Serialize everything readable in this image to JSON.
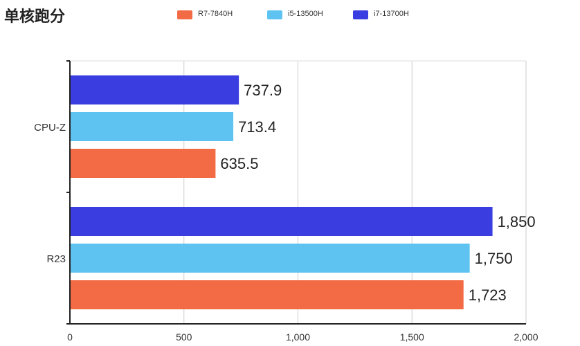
{
  "title": "单核跑分",
  "legend": [
    {
      "label": "R7-7840H",
      "color": "#F26B45"
    },
    {
      "label": "i5-13500H",
      "color": "#5EC3F0"
    },
    {
      "label": "i7-13700H",
      "color": "#3A3EE0"
    }
  ],
  "chart_data": {
    "type": "bar",
    "orientation": "horizontal",
    "title": "单核跑分",
    "categories": [
      "CPU-Z",
      "R23"
    ],
    "series": [
      {
        "name": "R7-7840H",
        "color": "#F26B45",
        "values": [
          635.5,
          1723
        ],
        "labels": [
          "635.5",
          "1,723"
        ]
      },
      {
        "name": "i5-13500H",
        "color": "#5EC3F0",
        "values": [
          713.4,
          1750
        ],
        "labels": [
          "713.4",
          "1,750"
        ]
      },
      {
        "name": "i7-13700H",
        "color": "#3A3EE0",
        "values": [
          737.9,
          1850
        ],
        "labels": [
          "737.9",
          "1,850"
        ]
      }
    ],
    "xlim": [
      0,
      2000
    ],
    "xticks": [
      0,
      500,
      1000,
      1500,
      2000
    ],
    "xtick_labels": [
      "0",
      "500",
      "1,000",
      "1,500",
      "2,000"
    ],
    "grid": true,
    "legend_position": "top"
  }
}
